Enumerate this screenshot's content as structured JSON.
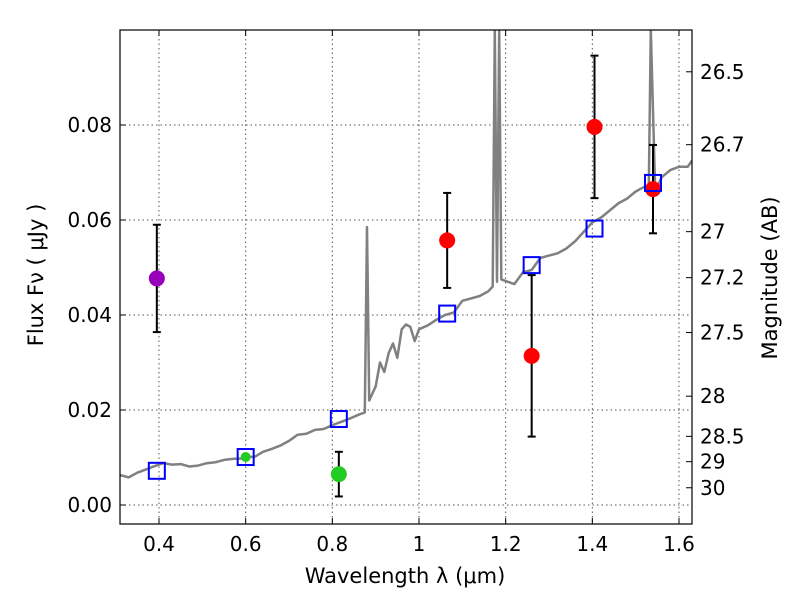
{
  "chart_data": {
    "type": "scatter",
    "xlabel": "Wavelength  λ (μm)",
    "ylabel": "Flux  Fν  ( μJy )",
    "ylabel_right": "Magnitude (AB)",
    "xlim": [
      0.31,
      1.63
    ],
    "ylim": [
      -0.004,
      0.1
    ],
    "xticks": [
      0.4,
      0.6,
      0.8,
      1.0,
      1.2,
      1.4,
      1.6
    ],
    "xtick_labels": [
      "0.4",
      "0.6",
      "0.8",
      "1",
      "1.2",
      "1.4",
      "1.6"
    ],
    "yticks": [
      0.0,
      0.02,
      0.04,
      0.06,
      0.08
    ],
    "ytick_labels": [
      "0.00",
      "0.02",
      "0.04",
      "0.06",
      "0.08"
    ],
    "right_ticks": [
      {
        "label": "26.5",
        "mag": 26.5
      },
      {
        "label": "26.7",
        "mag": 26.7
      },
      {
        "label": "27",
        "mag": 27.0
      },
      {
        "label": "27.2",
        "mag": 27.2
      },
      {
        "label": "27.5",
        "mag": 27.5
      },
      {
        "label": "28",
        "mag": 28.0
      },
      {
        "label": "28.5",
        "mag": 28.5
      },
      {
        "label": "29",
        "mag": 29.0
      },
      {
        "label": "30",
        "mag": 30.0
      }
    ],
    "grid": true,
    "colors": {
      "model": "#808080",
      "model_points": "#0000ff",
      "error_bars": "#000000"
    },
    "model_spectrum": [
      [
        0.31,
        0.0063
      ],
      [
        0.33,
        0.0058
      ],
      [
        0.35,
        0.0068
      ],
      [
        0.37,
        0.0075
      ],
      [
        0.39,
        0.0082
      ],
      [
        0.41,
        0.0088
      ],
      [
        0.43,
        0.0085
      ],
      [
        0.45,
        0.0086
      ],
      [
        0.47,
        0.0081
      ],
      [
        0.49,
        0.0083
      ],
      [
        0.51,
        0.0088
      ],
      [
        0.53,
        0.009
      ],
      [
        0.55,
        0.0095
      ],
      [
        0.57,
        0.0097
      ],
      [
        0.59,
        0.0098
      ],
      [
        0.6,
        0.0102
      ],
      [
        0.62,
        0.0101
      ],
      [
        0.64,
        0.0112
      ],
      [
        0.66,
        0.0118
      ],
      [
        0.68,
        0.0125
      ],
      [
        0.7,
        0.0135
      ],
      [
        0.72,
        0.0148
      ],
      [
        0.74,
        0.015
      ],
      [
        0.76,
        0.0158
      ],
      [
        0.78,
        0.016
      ],
      [
        0.8,
        0.0168
      ],
      [
        0.82,
        0.0175
      ],
      [
        0.84,
        0.0182
      ],
      [
        0.86,
        0.019
      ],
      [
        0.875,
        0.0195
      ],
      [
        0.88,
        0.0585
      ],
      [
        0.885,
        0.022
      ],
      [
        0.9,
        0.025
      ],
      [
        0.91,
        0.03
      ],
      [
        0.92,
        0.028
      ],
      [
        0.93,
        0.032
      ],
      [
        0.94,
        0.034
      ],
      [
        0.95,
        0.031
      ],
      [
        0.96,
        0.037
      ],
      [
        0.97,
        0.038
      ],
      [
        0.98,
        0.0375
      ],
      [
        0.99,
        0.0345
      ],
      [
        1.0,
        0.037
      ],
      [
        1.02,
        0.0378
      ],
      [
        1.04,
        0.039
      ],
      [
        1.06,
        0.04
      ],
      [
        1.08,
        0.0405
      ],
      [
        1.1,
        0.043
      ],
      [
        1.12,
        0.0435
      ],
      [
        1.14,
        0.044
      ],
      [
        1.16,
        0.045
      ],
      [
        1.17,
        0.046
      ],
      [
        1.175,
        0.1
      ],
      [
        1.18,
        0.047
      ],
      [
        1.185,
        0.1
      ],
      [
        1.19,
        0.0475
      ],
      [
        1.22,
        0.0465
      ],
      [
        1.24,
        0.049
      ],
      [
        1.26,
        0.0495
      ],
      [
        1.28,
        0.052
      ],
      [
        1.3,
        0.0525
      ],
      [
        1.32,
        0.053
      ],
      [
        1.34,
        0.054
      ],
      [
        1.36,
        0.0555
      ],
      [
        1.38,
        0.0575
      ],
      [
        1.4,
        0.0595
      ],
      [
        1.42,
        0.0605
      ],
      [
        1.44,
        0.062
      ],
      [
        1.46,
        0.0635
      ],
      [
        1.48,
        0.0645
      ],
      [
        1.5,
        0.066
      ],
      [
        1.52,
        0.067
      ],
      [
        1.53,
        0.0655
      ],
      [
        1.535,
        0.1
      ],
      [
        1.545,
        0.066
      ],
      [
        1.56,
        0.069
      ],
      [
        1.58,
        0.0705
      ],
      [
        1.6,
        0.0712
      ],
      [
        1.62,
        0.0712
      ],
      [
        1.63,
        0.0725
      ]
    ],
    "model_points": [
      {
        "x": 0.395,
        "y": 0.0072
      },
      {
        "x": 0.6,
        "y": 0.0101
      },
      {
        "x": 0.815,
        "y": 0.0181
      },
      {
        "x": 1.065,
        "y": 0.0403
      },
      {
        "x": 1.26,
        "y": 0.0505
      },
      {
        "x": 1.405,
        "y": 0.0582
      },
      {
        "x": 1.54,
        "y": 0.0678
      }
    ],
    "observations": [
      {
        "x": 0.395,
        "y": 0.0477,
        "err": 0.0113,
        "color": "#9900bb"
      },
      {
        "x": 0.6,
        "y": 0.0101,
        "err": 0.0,
        "color": "#22cc22"
      },
      {
        "x": 0.815,
        "y": 0.0065,
        "err": 0.0047,
        "color": "#22cc22"
      },
      {
        "x": 1.065,
        "y": 0.0557,
        "err": 0.01,
        "color": "#ff0000"
      },
      {
        "x": 1.26,
        "y": 0.0314,
        "err": 0.017,
        "color": "#ff0000"
      },
      {
        "x": 1.405,
        "y": 0.0796,
        "err": 0.015,
        "color": "#ff0000"
      },
      {
        "x": 1.54,
        "y": 0.0665,
        "err": 0.0093,
        "color": "#ff0000"
      }
    ]
  }
}
